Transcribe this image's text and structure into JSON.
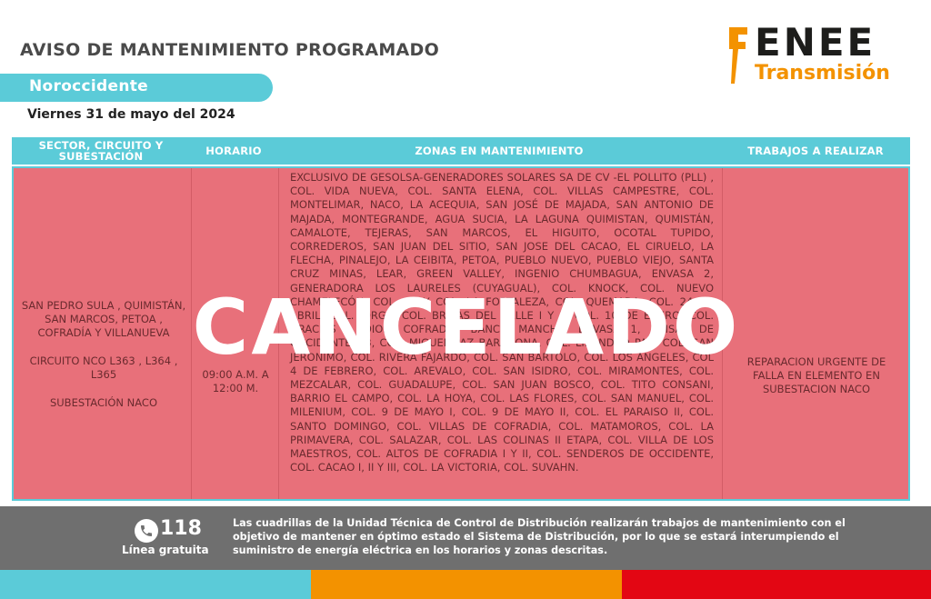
{
  "header": {
    "title": "AVISO DE MANTENIMIENTO PROGRAMADO",
    "region": "Noroccidente",
    "date": "Viernes 31 de mayo del 2024"
  },
  "logo": {
    "name": "ENEE",
    "subtitle": "Transmisión",
    "colors": {
      "dark": "#1d1d1b",
      "accent": "#f39200"
    }
  },
  "table": {
    "headers": {
      "sector": "SECTOR, CIRCUITO Y SUBESTACIÓN",
      "horario": "HORARIO",
      "zonas": "ZONAS EN MANTENIMIENTO",
      "trabajos": "TRABAJOS A REALIZAR"
    },
    "row": {
      "sector": "SAN PEDRO SULA , QUIMISTÁN, SAN MARCOS, PETOA , COFRADÍA Y VILLANUEVA",
      "circuito": "CIRCUITO NCO L363 , L364 , L365",
      "subestacion": "SUBESTACIÓN NACO",
      "horario": "09:00 A.M. A 12:00 M.",
      "zonas": "EXCLUSIVO DE GESOLSA-GENERADORES SOLARES SA DE CV -EL POLLITO (PLL) , COL. VIDA NUEVA, COL. SANTA ELENA, COL. VILLAS CAMPESTRE, COL. MONTELIMAR, NACO, LA ACEQUIA, SAN JOSÉ DE MAJADA, SAN ANTONIO DE MAJADA, MONTEGRANDE, AGUA SUCIA, LA LAGUNA QUIMISTAN, QUMISTÁN, CAMALOTE, TEJERAS, SAN MARCOS, EL HIGUITO, OCOTAL TUPIDO, CORREDEROS, SAN JUAN DEL SITIO, SAN JOSE DEL CACAO, EL CIRUELO, LA FLECHA, PINALEJO, LA CEIBITA, PETOA, PUEBLO NUEVO, PUEBLO VIEJO, SANTA CRUZ MINAS, LEAR, GREEN VALLEY, INGENIO CHUMBAGUA, ENVASA 2, GENERADORA LOS LAURELES (CUYAGUAL), COL. KNOCK, COL. NUEVO CHAMELECÓN, COL. 12 Y COL. LA FORTALEZA, COL. QUEMADA, COL. 24 DE ABRIL, COL. JORGE, COL. BRISAS DEL VALLE I Y II, COL. 10 DE ENERO, COL. GRACIAS A DIOS, COFRADÍA, BANCO MANCHA, ENVASA 1, BRISAS DE OCCIDENTE #3, COL. MIGUEL PAZ BARAHONA, COL. LISANDRO PAZ, COL. SAN JERONIMO, COL. RIVERA FAJARDO, COL. SAN BARTOLO, COL. LOS ANGELES, COL 4 DE FEBRERO, COL. AREVALO, COL. SAN ISIDRO, COL. MIRAMONTES, COL. MEZCALAR, COL. GUADALUPE, COL. SAN JUAN BOSCO, COL. TITO CONSANI, BARRIO EL CAMPO, COL. LA HOYA, COL. LAS FLORES, COL. SAN MANUEL, COL. MILENIUM, COL. 9 DE MAYO I, COL. 9 DE MAYO II, COL. EL PARAISO II, COL. SANTO DOMINGO, COL. VILLAS DE COFRADIA, COL. MATAMOROS, COL. LA PRIMAVERA, COL. SALAZAR, COL. LAS COLINAS II ETAPA, COL. VILLA DE LOS MAESTROS, COL. ALTOS DE COFRADIA I Y II, COL. SENDEROS DE OCCIDENTE, COL. CACAO I, II Y III, COL. LA VICTORIA, COL. SUVAHN.",
      "trabajos": "REPARACION URGENTE DE FALLA EN ELEMENTO EN SUBESTACION NACO"
    }
  },
  "stamp": "CANCELADO",
  "footer": {
    "phone": "118",
    "phone_label": "Línea gratuita",
    "notice": "Las cuadrillas de la Unidad Técnica de Control de Distribución realizarán trabajos de mantenimiento con el objetivo de mantener en óptimo estado el Sistema de Distribución, por lo que se estará interumpiendo el suministro de energía eléctrica en los horarios y zonas descritas."
  },
  "colors": {
    "cyan": "#5bcbd8",
    "row": "#e8707a",
    "orange": "#f39200",
    "red": "#e30613",
    "footer": "#6f6f6f"
  }
}
